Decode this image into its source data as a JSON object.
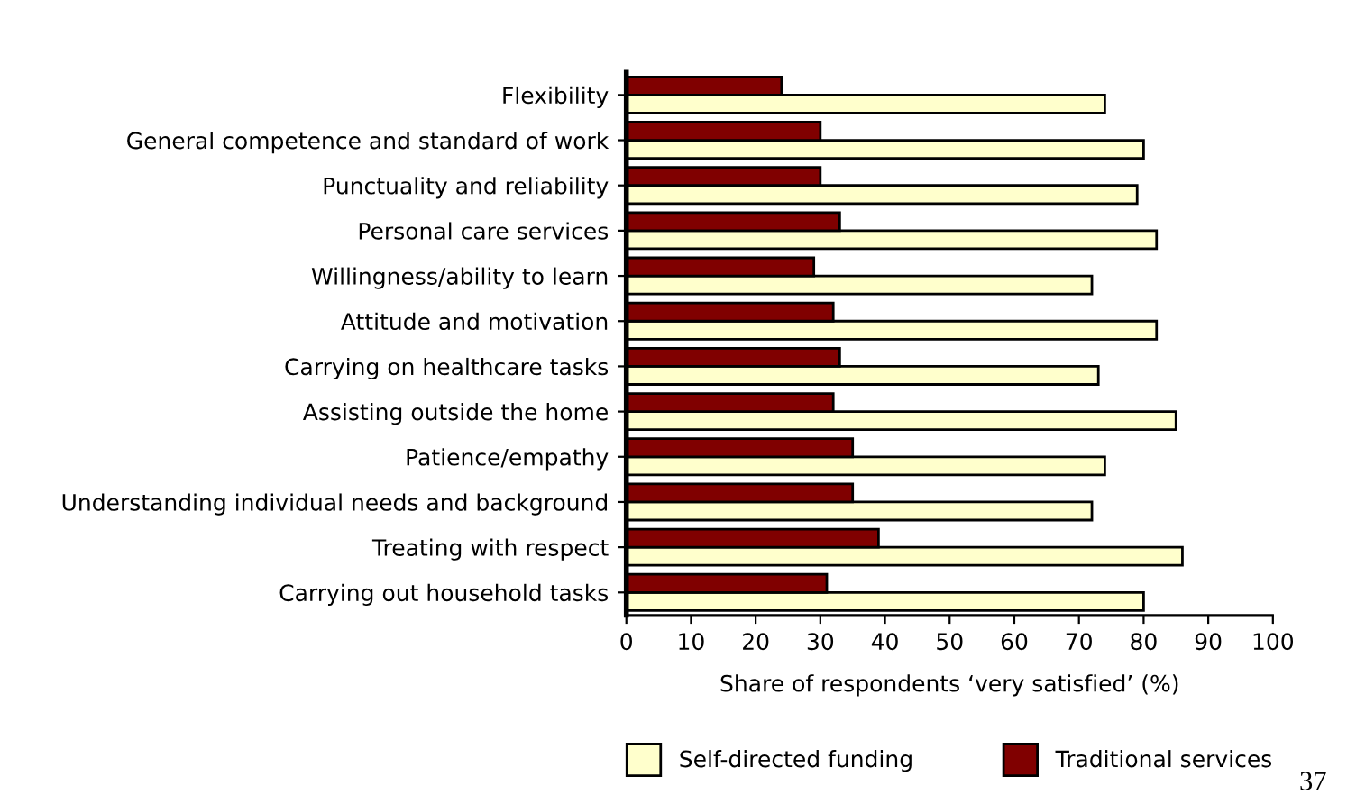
{
  "chart_data": {
    "type": "bar",
    "orientation": "horizontal",
    "categories": [
      "Flexibility",
      "General competence and standard of work",
      "Punctuality and reliability",
      "Personal care services",
      "Willingness/ability to learn",
      "Attitude and motivation",
      "Carrying on healthcare tasks",
      "Assisting outside the home",
      "Patience/empathy",
      "Understanding individual needs and background",
      "Treating with respect",
      "Carrying out household tasks"
    ],
    "series": [
      {
        "name": "Self-directed funding",
        "color": "#ffffcc",
        "values": [
          74,
          80,
          79,
          82,
          72,
          82,
          73,
          85,
          74,
          72,
          86,
          80
        ]
      },
      {
        "name": "Traditional services",
        "color": "#800000",
        "values": [
          24,
          30,
          30,
          33,
          29,
          32,
          33,
          32,
          35,
          35,
          39,
          31
        ]
      }
    ],
    "xlabel": "Share of respondents ‘very satisfied’ (%)",
    "xlim": [
      0,
      100
    ],
    "xticks": [
      0,
      10,
      20,
      30,
      40,
      50,
      60,
      70,
      80,
      90,
      100
    ],
    "grid": false,
    "legend": "bottom",
    "annotations": [
      "37"
    ]
  }
}
